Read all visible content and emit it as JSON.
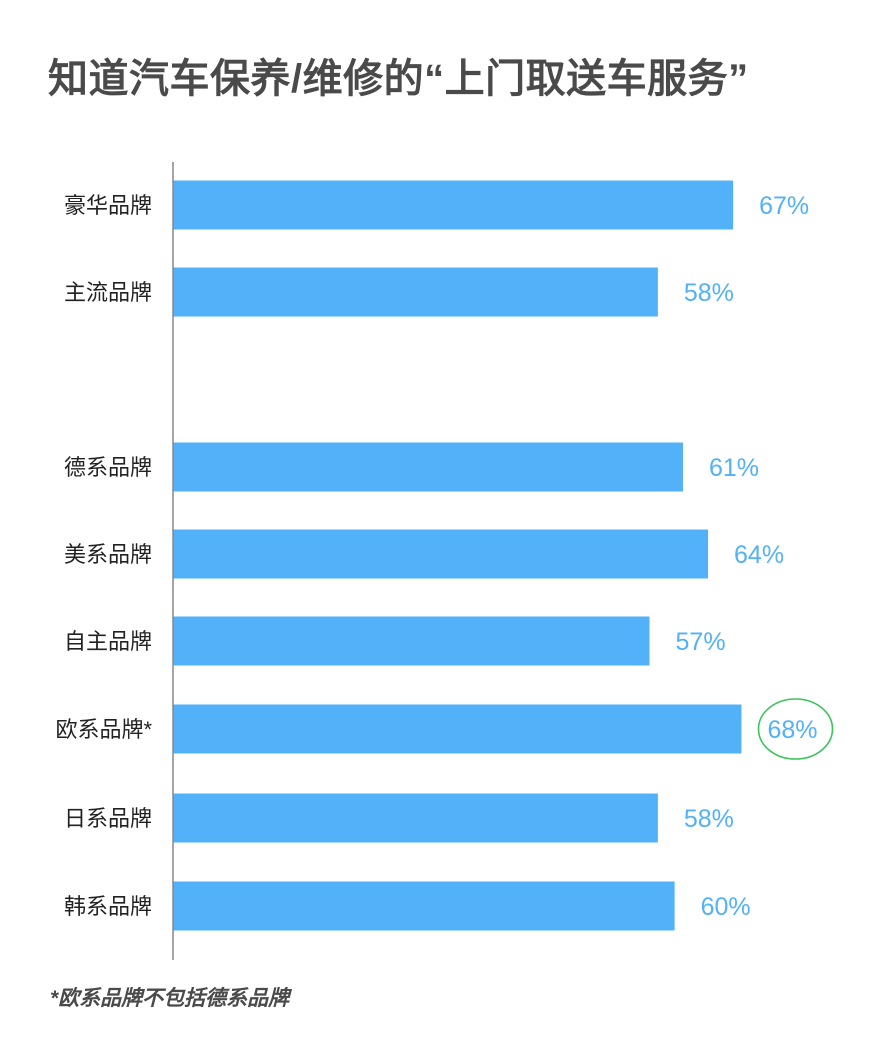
{
  "title": "知道汽车保养/维修的“上门取送车服务”",
  "footnote": "*欧系品牌不包括德系品牌",
  "colors": {
    "bar": "#52b1f8",
    "value_label": "#52b1f8",
    "highlight_circle": "#3cc35a",
    "axis": "#888888",
    "category_text": "#222222"
  },
  "chart_data": {
    "type": "bar",
    "orientation": "horizontal",
    "title": "知道汽车保养/维修的“上门取送车服务”",
    "xlabel": "",
    "ylabel": "",
    "xlim": [
      0,
      100
    ],
    "grid": false,
    "legend": "none",
    "categories": [
      "豪华品牌",
      "主流品牌",
      "德系品牌",
      "美系品牌",
      "自主品牌",
      "欧系品牌*",
      "日系品牌",
      "韩系品牌"
    ],
    "values": [
      67,
      58,
      61,
      64,
      57,
      68,
      58,
      60
    ],
    "value_labels": [
      "67%",
      "58%",
      "61%",
      "64%",
      "57%",
      "68%",
      "58%",
      "60%"
    ],
    "highlighted": "欧系品牌*"
  }
}
